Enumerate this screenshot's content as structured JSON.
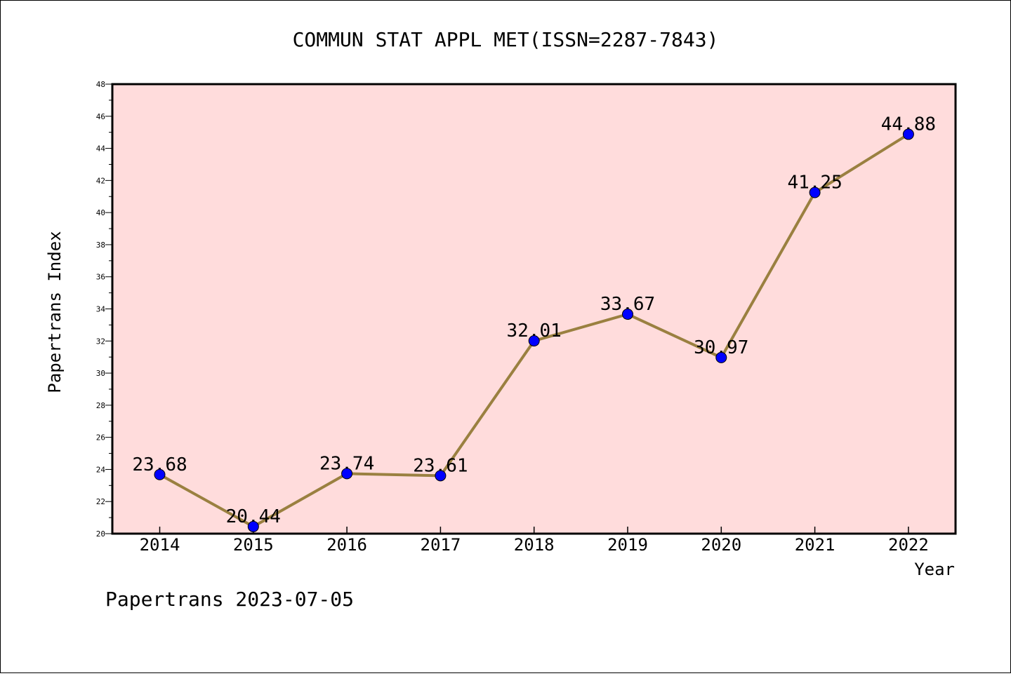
{
  "chart_data": {
    "type": "line",
    "title": "COMMUN STAT APPL MET(ISSN=2287-7843)",
    "xlabel": "Year",
    "ylabel": "Papertrans Index",
    "footer": "Papertrans 2023-07-05",
    "categories": [
      "2014",
      "2015",
      "2016",
      "2017",
      "2018",
      "2019",
      "2020",
      "2021",
      "2022"
    ],
    "series": [
      {
        "values": [
          23.68,
          20.44,
          23.74,
          23.61,
          32.01,
          33.67,
          30.97,
          41.25,
          44.88
        ],
        "labels": [
          "23.68",
          "20.44",
          "23.74",
          "23.61",
          "32.01",
          "33.67",
          "30.97",
          "41.25",
          "44.88"
        ]
      }
    ],
    "ylim": [
      20,
      48
    ],
    "yticks": [
      "20",
      "22",
      "24",
      "26",
      "28",
      "30",
      "32",
      "34",
      "36",
      "38",
      "40",
      "42",
      "44",
      "46",
      "48"
    ],
    "grid": false,
    "legend": "none",
    "colors": {
      "plot_background": "#ffdcdc",
      "line": "#9a8040",
      "marker": "#0000ff",
      "axes": "#000000"
    }
  }
}
